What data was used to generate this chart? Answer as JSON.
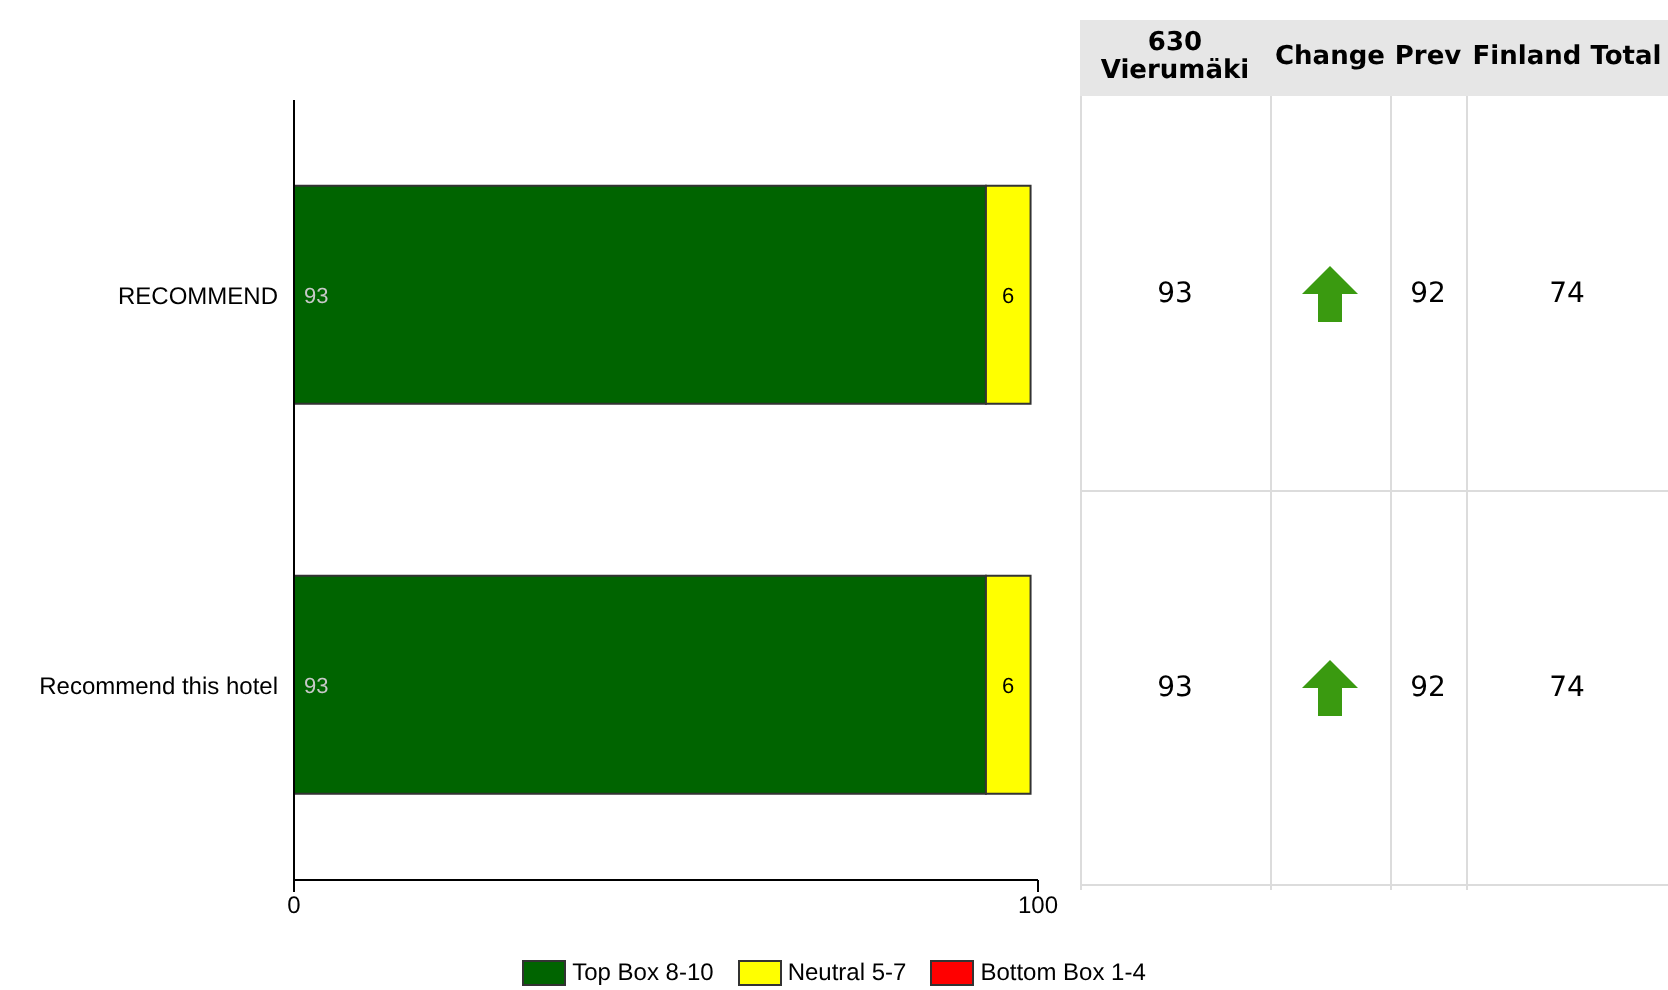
{
  "chart_data": {
    "type": "bar",
    "orientation": "horizontal",
    "stacked": true,
    "categories": [
      "RECOMMEND",
      "Recommend this hotel"
    ],
    "series": [
      {
        "name": "Top Box 8-10",
        "color": "#006400",
        "values": [
          93,
          93
        ]
      },
      {
        "name": "Neutral 5-7",
        "color": "#ffff00",
        "values": [
          6,
          6
        ]
      },
      {
        "name": "Bottom Box 1-4",
        "color": "#ff0000",
        "values": [
          null,
          null
        ]
      }
    ],
    "xlim": [
      0,
      100
    ],
    "xticks": [
      0,
      100
    ],
    "data_labels": true,
    "legend": "bottom",
    "annotations": [
      "630 Vierumäki",
      "Change",
      "Prev",
      "Finland Total",
      "93",
      "92",
      "74",
      "93",
      "92",
      "74"
    ]
  }
}
